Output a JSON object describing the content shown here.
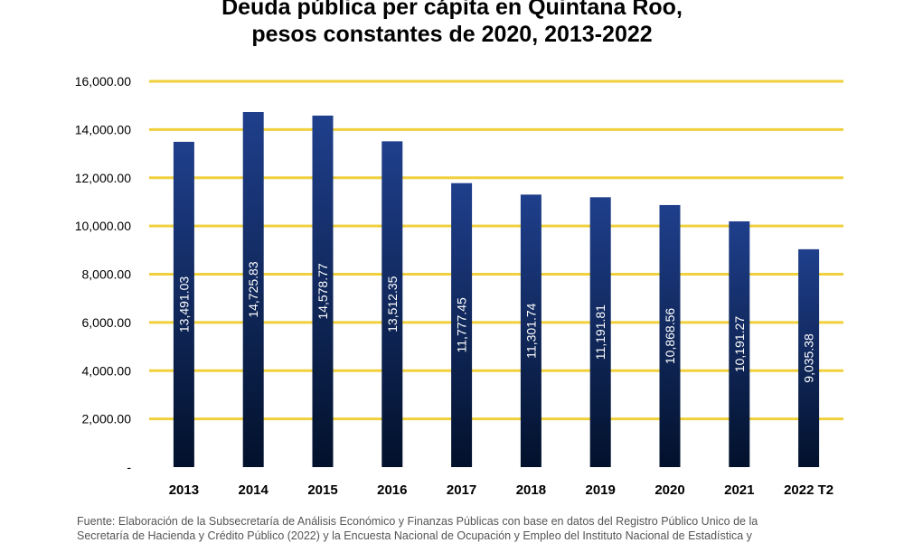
{
  "chart_data": {
    "type": "bar",
    "title_lines": [
      "Deuda pública per cápita en Quintana Roo,",
      "pesos constantes de 2020, 2013-2022"
    ],
    "categories": [
      "2013",
      "2014",
      "2015",
      "2016",
      "2017",
      "2018",
      "2019",
      "2020",
      "2021",
      "2022 T2"
    ],
    "values": [
      13491.03,
      14725.83,
      14578.77,
      13512.35,
      11777.45,
      11301.74,
      11191.81,
      10868.56,
      10191.27,
      9035.38
    ],
    "data_labels": [
      "13,491.03",
      "14,725.83",
      "14,578.77",
      "13,512.35",
      "11,777.45",
      "11,301.74",
      "11,191.81",
      "10,868.56",
      "10,191.27",
      "9,035.38"
    ],
    "yticks": [
      0,
      2000,
      4000,
      6000,
      8000,
      10000,
      12000,
      14000,
      16000
    ],
    "ytick_labels": [
      "-",
      "2,000.00",
      "4,000.00",
      "6,000.00",
      "8,000.00",
      "10,000.00",
      "12,000.00",
      "14,000.00",
      "16,000.00"
    ],
    "ylim": [
      0,
      16000
    ],
    "grid": true,
    "grid_color": "#F0D03C",
    "bar_color_top": "#1F3F8C",
    "bar_color_bottom": "#02112B"
  },
  "source_lines": [
    "Fuente: Elaboración de la Subsecretaría de Análisis Económico y Finanzas Públicas con base en datos del Registro Público Unico de la",
    "Secretaría de Hacienda y Crédito Público (2022) y la Encuesta Nacional de Ocupación y Empleo del Instituto Nacional de Estadística y"
  ]
}
